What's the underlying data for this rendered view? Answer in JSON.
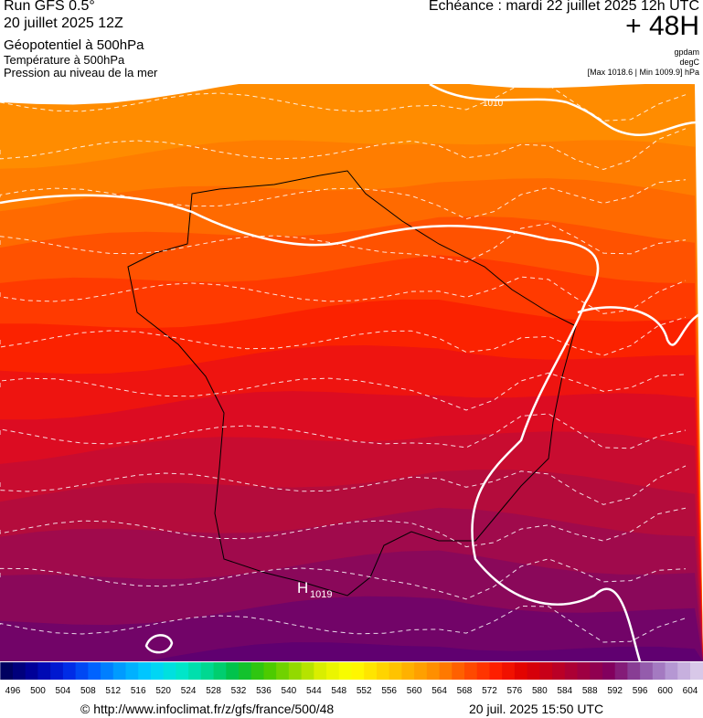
{
  "header": {
    "run": "Run GFS 0.5°",
    "date": "20 juillet 2025 12Z",
    "field1": "Géopotentiel à 500hPa",
    "field2": "Température à 500hPa",
    "field3": "Pression au niveau de la mer",
    "echeance": "Echéance : mardi 22 juillet 2025 12h UTC",
    "lead": "+ 48H",
    "unit1": "gpdam",
    "unit2": "degC",
    "minmax": "[Max 1018.6 | Min 1009.9] hPa"
  },
  "map": {
    "isobar_label": "1010",
    "high_symbol": "H",
    "high_value": "1019"
  },
  "colorbar": {
    "labels": [
      496,
      500,
      504,
      508,
      512,
      516,
      520,
      524,
      528,
      532,
      536,
      540,
      544,
      548,
      552,
      556,
      560,
      564,
      568,
      572,
      576,
      580,
      584,
      588,
      592,
      596,
      600,
      604
    ]
  },
  "footer": {
    "url": "© http://www.infoclimat.fr/z/gfs/france/500/48",
    "timestamp": "20 juil. 2025 15:50 UTC"
  }
}
